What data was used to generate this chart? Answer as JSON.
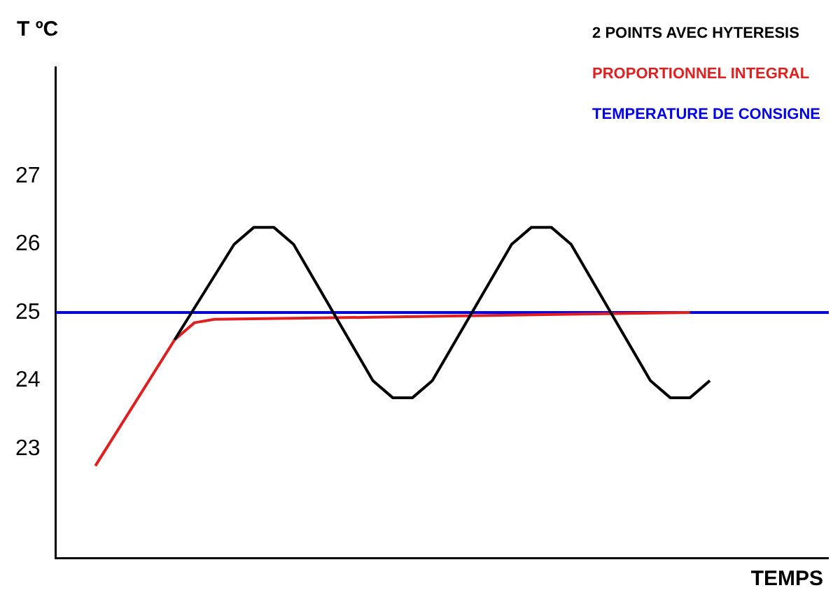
{
  "chart_data": {
    "type": "line",
    "xlabel": "TEMPS",
    "ylabel": "T ºC",
    "categories": [
      null,
      null,
      null,
      null,
      null,
      null,
      null,
      null,
      null,
      null,
      null,
      null,
      null,
      null,
      null,
      null,
      null,
      null,
      null,
      null,
      null,
      null,
      null,
      null,
      null,
      null,
      null,
      null,
      null,
      null,
      null,
      null,
      null,
      null,
      null,
      null,
      null,
      null,
      null,
      null
    ],
    "series": [
      {
        "name": "2 POINTS AVEC HYTERESIS",
        "color": "#000000",
        "values": [
          null,
          null,
          null,
          null,
          null,
          null,
          24.6,
          null,
          null,
          26.0,
          26.25,
          26.25,
          26.0,
          null,
          null,
          null,
          24.0,
          23.75,
          23.75,
          24.0,
          null,
          null,
          null,
          26.0,
          26.25,
          26.25,
          26.0,
          null,
          null,
          null,
          24.0,
          23.75,
          23.75,
          24.0,
          null,
          null,
          null,
          null,
          null,
          null
        ]
      },
      {
        "name": "PROPORTIONNEL INTEGRAL",
        "color": "#e02020",
        "values": [
          null,
          null,
          22.75,
          null,
          null,
          null,
          24.6,
          24.85,
          24.9,
          null,
          null,
          null,
          null,
          null,
          null,
          null,
          24.93,
          null,
          null,
          null,
          null,
          null,
          null,
          null,
          null,
          null,
          null,
          null,
          null,
          null,
          null,
          null,
          25.0,
          null,
          null,
          null,
          null,
          null,
          null,
          null
        ]
      },
      {
        "name": "TEMPERATURE DE CONSIGNE",
        "color": "#0000ee",
        "values": [
          25,
          25,
          25,
          25,
          25,
          25,
          25,
          25,
          25,
          25,
          25,
          25,
          25,
          25,
          25,
          25,
          25,
          25,
          25,
          25,
          25,
          25,
          25,
          25,
          25,
          25,
          25,
          25,
          25,
          25,
          25,
          25,
          25,
          25,
          25,
          25,
          25,
          25,
          25,
          25
        ]
      }
    ],
    "ylim": [
      21.4,
      28.6
    ],
    "yticks": [
      23,
      24,
      25,
      26,
      27
    ],
    "tick_labels": "y",
    "legend": "top right",
    "grid": false,
    "marker": "none",
    "line_style": "solid"
  }
}
